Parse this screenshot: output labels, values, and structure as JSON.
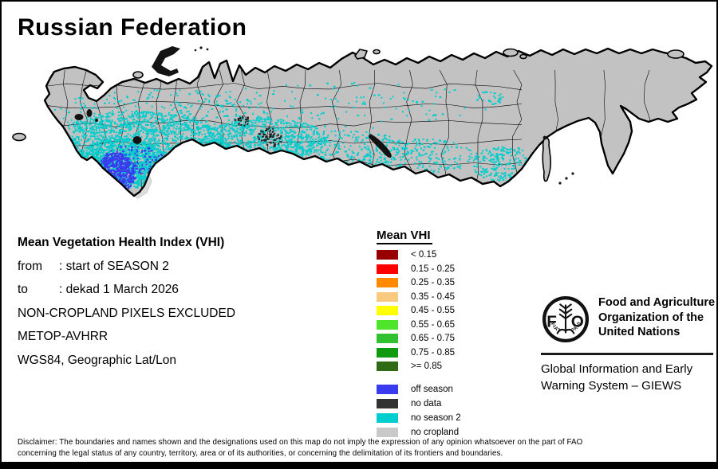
{
  "title": "Russian Federation",
  "info": {
    "heading": "Mean Vegetation Health Index (VHI)",
    "rows": [
      {
        "label": "from",
        "value": ": start of SEASON 2"
      },
      {
        "label": "to",
        "value": ": dekad 1 March 2026"
      }
    ],
    "line_noncrop": "NON-CROPLAND PIXELS EXCLUDED",
    "line_sensor": "METOP-AVHRR",
    "line_proj": "WGS84, Geographic Lat/Lon"
  },
  "legend": {
    "title": "Mean VHI",
    "classes": [
      {
        "label": "< 0.15",
        "color": "#990000"
      },
      {
        "label": "0.15 - 0.25",
        "color": "#FE0000"
      },
      {
        "label": "0.25 - 0.35",
        "color": "#FF8A00"
      },
      {
        "label": "0.35 - 0.45",
        "color": "#F8C97E"
      },
      {
        "label": "0.45 - 0.55",
        "color": "#FFFF00"
      },
      {
        "label": "0.55 - 0.65",
        "color": "#4FE52A"
      },
      {
        "label": "0.65 - 0.75",
        "color": "#2FC12F"
      },
      {
        "label": "0.75 - 0.85",
        "color": "#0F9B0F"
      },
      {
        "label": ">= 0.85",
        "color": "#2F6B14"
      }
    ],
    "extra_classes": [
      {
        "label": "off season",
        "color": "#3A3AEF"
      },
      {
        "label": "no data",
        "color": "#333333"
      },
      {
        "label": "no season 2",
        "color": "#00CDCD"
      },
      {
        "label": "no cropland",
        "color": "#C9C9C9"
      }
    ]
  },
  "org": {
    "logo_letters": [
      "F",
      "O"
    ],
    "logo_motto": [
      "FIAT",
      "PANIS"
    ],
    "name_lines": [
      "Food and Agriculture",
      "Organization of the",
      "United Nations"
    ],
    "system_lines": [
      "Global Information and Early",
      "Warning System – GIEWS"
    ]
  },
  "disclaimer_lines": [
    "Disclaimer: The boundaries and names shown and the designations used on this map do not imply the expression of any opinion whatsoever on the part of FAO",
    "concerning the legal status of any country, territory, area or of its authorities, or concerning the delimitation of its frontiers and boundaries."
  ],
  "map": {
    "land_color": "#C2C2C2",
    "neighbor_color": "#DCDCDC",
    "season2_color": "#00CDCD",
    "offseason_color": "#3A3AEF",
    "nodata_color": "#222222"
  }
}
